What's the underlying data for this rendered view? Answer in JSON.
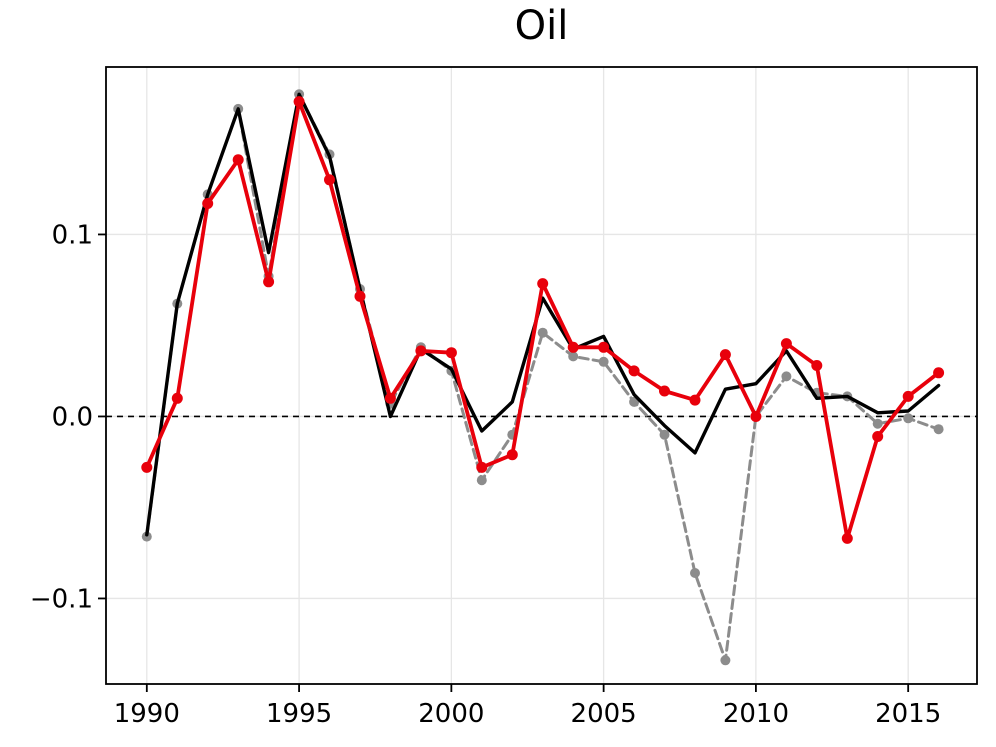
{
  "figure": {
    "title": "Oil"
  },
  "chart_data": {
    "type": "line",
    "title": "Oil",
    "xlabel": "",
    "ylabel": "",
    "x": [
      1990,
      1991,
      1992,
      1993,
      1994,
      1995,
      1996,
      1997,
      1998,
      1999,
      2000,
      2001,
      2002,
      2003,
      2004,
      2005,
      2006,
      2007,
      2008,
      2009,
      2010,
      2011,
      2012,
      2013,
      2014,
      2015,
      2016
    ],
    "series": [
      {
        "name": "gray-dashed-markers",
        "color": "#8c8c8c",
        "style": "dashed",
        "markers": true,
        "values": [
          -0.066,
          0.062,
          0.122,
          0.169,
          0.077,
          0.177,
          0.144,
          0.07,
          0.007,
          0.038,
          0.025,
          -0.035,
          -0.01,
          0.046,
          0.033,
          0.03,
          0.008,
          -0.01,
          -0.086,
          -0.134,
          0.0,
          0.022,
          0.013,
          0.011,
          -0.004,
          -0.001,
          -0.007
        ]
      },
      {
        "name": "black-solid",
        "color": "#000000",
        "style": "solid",
        "markers": false,
        "values": [
          -0.065,
          0.062,
          0.122,
          0.169,
          0.09,
          0.177,
          0.143,
          0.07,
          0.0,
          0.037,
          0.026,
          -0.008,
          0.008,
          0.065,
          0.037,
          0.044,
          0.012,
          -0.005,
          -0.02,
          0.015,
          0.018,
          0.036,
          0.01,
          0.011,
          0.002,
          0.003,
          0.017
        ]
      },
      {
        "name": "red-solid-markers",
        "color": "#e8000b",
        "style": "solid",
        "markers": true,
        "values": [
          -0.028,
          0.01,
          0.117,
          0.141,
          0.074,
          0.173,
          0.13,
          0.066,
          0.01,
          0.036,
          0.035,
          -0.028,
          -0.021,
          0.073,
          0.038,
          0.038,
          0.025,
          0.014,
          0.009,
          0.034,
          0.0,
          0.04,
          0.028,
          -0.067,
          -0.011,
          0.011,
          0.024
        ]
      }
    ],
    "xticks": [
      1990,
      1995,
      2000,
      2005,
      2010,
      2015
    ],
    "xtick_labels": [
      "1990",
      "1995",
      "2000",
      "2005",
      "2010",
      "2015"
    ],
    "yticks": [
      -0.1,
      0.0,
      0.1
    ],
    "ytick_labels": [
      "−0.1",
      "0.0",
      "0.1"
    ],
    "xlim": [
      1988.66,
      2017.26
    ],
    "ylim": [
      -0.147,
      0.192
    ],
    "grid": true,
    "zero_line": true,
    "legend": "none",
    "colors": {
      "background": "#ffffff",
      "grid": "#e6e6e6",
      "spine": "#000000",
      "zero_line": "#000000"
    }
  }
}
